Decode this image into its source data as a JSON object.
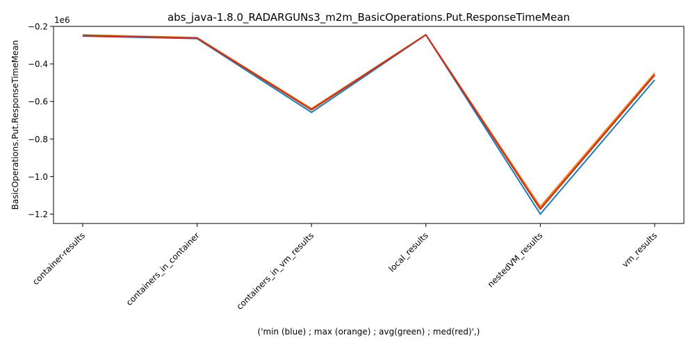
{
  "chart_data": {
    "type": "line",
    "title": "abs_java-1.8.0_RADARGUNs3_m2m_BasicOperations.Put.ResponseTimeMean",
    "xlabel": "('min (blue) ; max (orange) ; avg(green) ; med(red)',)",
    "ylabel": "BasicOperations.Put.ResponseTimeMean",
    "offset_label": "1e6",
    "categories": [
      "container-results",
      "containers_in_container",
      "containers_in_vm_results",
      "local_results",
      "nestedVM_results",
      "vm_results"
    ],
    "y_scale": 1000000,
    "ylim": [
      -1.25,
      -0.2
    ],
    "yticks": [
      -1.2,
      -1.0,
      -0.8,
      -0.6,
      -0.4,
      -0.2
    ],
    "ytick_labels": [
      "−1.2",
      "−1.0",
      "−0.8",
      "−0.6",
      "−0.4",
      "−0.2"
    ],
    "grid": false,
    "legend": "none",
    "series": [
      {
        "color": "#1f77b4",
        "values": [
          -0.252,
          -0.265,
          -0.658,
          -0.245,
          -1.2,
          -0.485
        ]
      },
      {
        "color": "#ff7f0e",
        "values": [
          -0.245,
          -0.26,
          -0.638,
          -0.244,
          -1.16,
          -0.448
        ]
      },
      {
        "color": "#2ca02c",
        "values": [
          -0.248,
          -0.262,
          -0.645,
          -0.245,
          -1.175,
          -0.46
        ]
      },
      {
        "color": "#d62728",
        "values": [
          -0.249,
          -0.262,
          -0.643,
          -0.245,
          -1.172,
          -0.458
        ]
      }
    ]
  }
}
